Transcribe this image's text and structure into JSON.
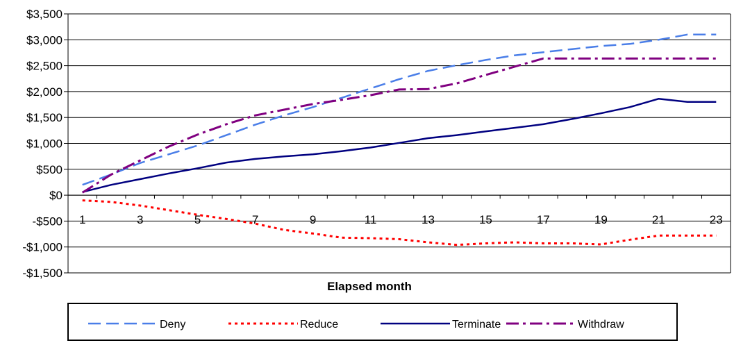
{
  "chart_data": {
    "type": "line",
    "title": "",
    "xlabel": "Elapsed month",
    "ylabel": "",
    "x": [
      1,
      2,
      3,
      4,
      5,
      6,
      7,
      8,
      9,
      10,
      11,
      12,
      13,
      14,
      15,
      16,
      17,
      18,
      19,
      20,
      21,
      22,
      23
    ],
    "x_tick_labels": [
      "1",
      "3",
      "5",
      "7",
      "9",
      "11",
      "13",
      "15",
      "17",
      "19",
      "21",
      "23"
    ],
    "x_tick_values": [
      1,
      3,
      5,
      7,
      9,
      11,
      13,
      15,
      17,
      19,
      21,
      23
    ],
    "ylim": [
      -1500,
      3500
    ],
    "y_ticks": [
      -1500,
      -1000,
      -500,
      0,
      500,
      1000,
      1500,
      2000,
      2500,
      3000,
      3500
    ],
    "y_tick_labels": [
      "-$1,500",
      "-$1,000",
      "-$500",
      "$0",
      "$500",
      "$1,000",
      "$1,500",
      "$2,000",
      "$2,500",
      "$3,000",
      "$3,500"
    ],
    "grid": "horizontal",
    "legend_position": "bottom",
    "series": [
      {
        "name": "Deny",
        "color": "#4a7ee8",
        "dash": "long-dash",
        "values": [
          200,
          400,
          620,
          790,
          960,
          1160,
          1360,
          1540,
          1700,
          1880,
          2060,
          2240,
          2400,
          2510,
          2610,
          2700,
          2760,
          2820,
          2880,
          2920,
          3000,
          3100,
          3100
        ]
      },
      {
        "name": "Reduce",
        "color": "#ff0000",
        "dash": "dot",
        "values": [
          -100,
          -130,
          -200,
          -290,
          -380,
          -460,
          -550,
          -670,
          -740,
          -820,
          -830,
          -850,
          -910,
          -960,
          -930,
          -910,
          -930,
          -930,
          -950,
          -860,
          -780,
          -780,
          -780
        ]
      },
      {
        "name": "Terminate",
        "color": "#000080",
        "dash": "solid",
        "values": [
          60,
          200,
          310,
          420,
          520,
          630,
          700,
          750,
          790,
          850,
          920,
          1010,
          1100,
          1160,
          1230,
          1300,
          1370,
          1470,
          1580,
          1700,
          1860,
          1800,
          1800
        ]
      },
      {
        "name": "Withdraw",
        "color": "#800080",
        "dash": "dash-dot",
        "values": [
          50,
          400,
          670,
          940,
          1170,
          1370,
          1540,
          1650,
          1760,
          1840,
          1930,
          2040,
          2050,
          2160,
          2320,
          2480,
          2640,
          2640,
          2640,
          2640,
          2640,
          2640,
          2640
        ]
      }
    ]
  }
}
